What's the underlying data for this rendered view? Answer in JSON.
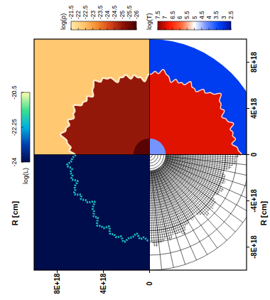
{
  "chart_data": {
    "type": "image",
    "xlabel": "R [cm]",
    "ylabel": "R [cm]",
    "xlim": [
      1e+19,
      -8.4e+18
    ],
    "xticks": [
      {
        "value": 8e+18,
        "label": "8E+18"
      },
      {
        "value": 4e+18,
        "label": "4E+18"
      },
      0
    ],
    "ylim": [
      -1e+19,
      1e+19
    ],
    "yticks": [
      {
        "value": 8e+18,
        "label": "8E+18"
      },
      {
        "value": 4e+18,
        "label": "4E+18"
      },
      0,
      {
        "value": -4e+18,
        "label": "-4E+18"
      },
      {
        "value": -8e+18,
        "label": "-8E+18"
      }
    ],
    "bubble_radius": 7.2e+18,
    "core_radius": 1.4e+18,
    "colorbars": [
      {
        "label": "log(ρ)",
        "range": [
          -21.5,
          -26
        ],
        "ticks": [
          -21.5,
          -22,
          -22.5,
          -23,
          -23.5,
          -24,
          -24.5,
          -25,
          -25.5,
          -26
        ],
        "colors": [
          "#ffe9a8",
          "#ffc46a",
          "#f58a2e",
          "#d4441a",
          "#8c1208",
          "#4a0000"
        ]
      },
      {
        "label": "log(T)",
        "range": [
          7.5,
          2.5
        ],
        "ticks": [
          7.5,
          7,
          6.5,
          6,
          5.5,
          5,
          4.5,
          4,
          3.5,
          3,
          2.5
        ],
        "colors": [
          "#8b0000",
          "#ff1a00",
          "#ff7040",
          "#ffffff",
          "#7090ff",
          "#0044ff",
          "#0010a0"
        ]
      },
      {
        "label": "log(L)",
        "range": [
          -24,
          -20.5
        ],
        "ticks": [
          -20.5,
          -22.25,
          -24
        ],
        "colors": [
          "#000d4d",
          "#0040b0",
          "#00b0e0",
          "#40e090",
          "#ffffb0"
        ]
      }
    ],
    "fields": [
      {
        "ambient": -22.3,
        "bubble": -25.0,
        "core": -25.8
      },
      {
        "ambient": 3.2,
        "bubble": 6.9,
        "core": 4.2
      },
      {
        "ambient": -24,
        "bubble": -24,
        "shell": -21.9
      }
    ]
  }
}
